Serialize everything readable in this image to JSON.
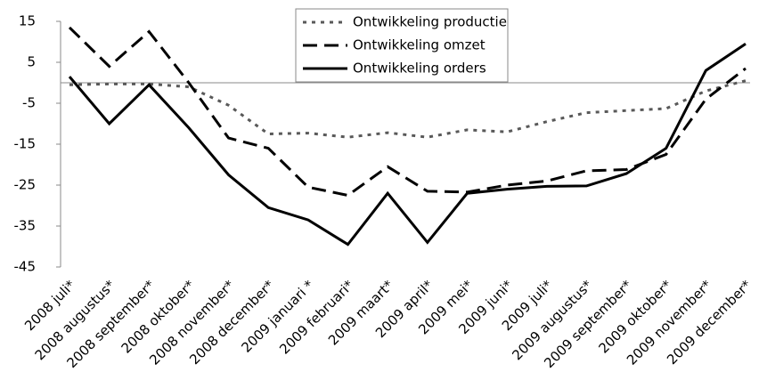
{
  "chart_data": {
    "type": "line",
    "categories": [
      "2008 juli*",
      "2008 augustus*",
      "2008 september*",
      "2008 oktober*",
      "2008 november*",
      "2008 december*",
      "2009 januari *",
      "2009 februari*",
      "2009 maart*",
      "2009 april*",
      "2009 mei*",
      "2009 juni*",
      "2009 juli*",
      "2009 augustus*",
      "2009 september*",
      "2009 oktober*",
      "2009 november*",
      "2009 december*"
    ],
    "series": [
      {
        "name": "Ontwikkeling productie",
        "color": "#595959",
        "dash": "dotted",
        "values": [
          -0.5,
          -0.3,
          -0.3,
          -1,
          -5.5,
          -12.5,
          -12.3,
          -13.3,
          -12.2,
          -13.3,
          -11.5,
          -12,
          -9.5,
          -7.3,
          -6.8,
          -6.3,
          -2,
          0.5
        ]
      },
      {
        "name": "Ontwikkeling omzet",
        "color": "#000000",
        "dash": "dashed",
        "values": [
          13.5,
          4,
          12.5,
          0,
          -13.5,
          -16,
          -25.5,
          -27.5,
          -20.5,
          -26.5,
          -26.7,
          -25,
          -24,
          -21.5,
          -21.2,
          -17.5,
          -4,
          3.5
        ]
      },
      {
        "name": "Ontwikkeling orders",
        "color": "#000000",
        "dash": "solid",
        "values": [
          1.5,
          -10,
          -0.5,
          -11,
          -22.5,
          -30.5,
          -33.5,
          -39.5,
          -27,
          -39,
          -27,
          -26,
          -25.3,
          -25.2,
          -22.2,
          -16,
          3,
          9.5
        ]
      }
    ],
    "ylim": [
      -45,
      15
    ],
    "yticks": [
      -45,
      -35,
      -25,
      -15,
      -5,
      5,
      15
    ],
    "grid": false,
    "legend": "top"
  }
}
